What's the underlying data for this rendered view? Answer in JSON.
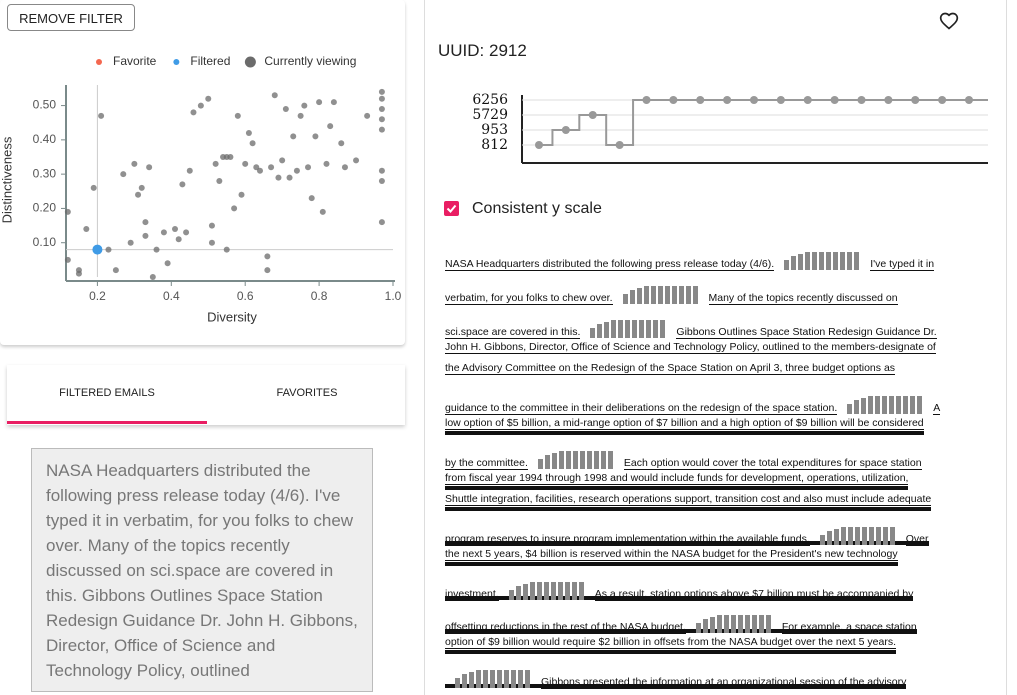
{
  "button": "REMOVE FILTER",
  "chart_data": {
    "type": "scatter",
    "xlabel": "Diversity",
    "ylabel": "Distinctiveness",
    "xlim": [
      0.115,
      1.0
    ],
    "ylim": [
      0,
      0.56
    ],
    "xticks": [
      0.2,
      0.4,
      0.6,
      0.8,
      {
        "value": 1,
        "label": "1.0"
      }
    ],
    "yticks": [
      {
        "value": 0.1,
        "label": "0.10"
      },
      {
        "value": 0.2,
        "label": "0.20"
      },
      {
        "value": 0.3,
        "label": "0.30"
      },
      {
        "value": 0.4,
        "label": "0.40"
      },
      {
        "value": 0.5,
        "label": "0.50"
      }
    ],
    "series": [
      {
        "name": "Favorite",
        "color": "#f4674f",
        "x": [],
        "values": []
      },
      {
        "name": "Filtered",
        "color": "#3f9be6",
        "x": [
          0.2
        ],
        "values": [
          0.08
        ]
      },
      {
        "name": "Currently viewing",
        "color": "#6b6b6b",
        "x": [
          0.12,
          0.12,
          0.15,
          0.15,
          0.17,
          0.19,
          0.21,
          0.23,
          0.25,
          0.27,
          0.29,
          0.3,
          0.31,
          0.32,
          0.33,
          0.33,
          0.34,
          0.35,
          0.36,
          0.38,
          0.39,
          0.41,
          0.42,
          0.43,
          0.44,
          0.45,
          0.46,
          0.48,
          0.5,
          0.51,
          0.51,
          0.52,
          0.53,
          0.54,
          0.55,
          0.55,
          0.56,
          0.57,
          0.58,
          0.59,
          0.6,
          0.61,
          0.62,
          0.63,
          0.64,
          0.66,
          0.66,
          0.67,
          0.68,
          0.69,
          0.7,
          0.71,
          0.72,
          0.73,
          0.74,
          0.75,
          0.76,
          0.77,
          0.78,
          0.79,
          0.8,
          0.81,
          0.82,
          0.83,
          0.84,
          0.86,
          0.87,
          0.9,
          0.93,
          0.97,
          0.97,
          0.97,
          0.97,
          0.97,
          0.97,
          0.97,
          0.97
        ],
        "values": [
          0.19,
          0.05,
          0.02,
          0.01,
          0.14,
          0.26,
          0.47,
          0.08,
          0.02,
          0.3,
          0.1,
          0.33,
          0.24,
          0.26,
          0.16,
          0.12,
          0.32,
          0.0,
          0.08,
          0.13,
          0.04,
          0.14,
          0.11,
          0.27,
          0.13,
          0.31,
          0.48,
          0.5,
          0.52,
          0.1,
          0.15,
          0.33,
          0.28,
          0.35,
          0.35,
          0.08,
          0.35,
          0.2,
          0.47,
          0.24,
          0.33,
          0.42,
          0.39,
          0.32,
          0.31,
          0.06,
          0.02,
          0.32,
          0.53,
          0.29,
          0.34,
          0.49,
          0.29,
          0.41,
          0.31,
          0.47,
          0.5,
          0.32,
          0.23,
          0.41,
          0.51,
          0.19,
          0.33,
          0.44,
          0.51,
          0.39,
          0.32,
          0.34,
          0.47,
          0.54,
          0.52,
          0.49,
          0.46,
          0.43,
          0.31,
          0.28,
          0.16
        ]
      }
    ]
  },
  "tabs": [
    "FILTERED EMAILS",
    "FAVORITES"
  ],
  "email": "NASA Headquarters distributed the following press release today (4/6). I've typed it in verbatim, for you folks to chew over. Many of the topics recently discussed on sci.space are covered in this. Gibbons Outlines Space Station Redesign Guidance Dr. John H. Gibbons, Director, Office of Science and Technology Policy, outlined",
  "uuid": "UUID: 2912",
  "step_chart": {
    "type": "step",
    "yticks": [
      812,
      953,
      5729,
      6256
    ],
    "values": [
      812,
      953,
      5729,
      812,
      6256,
      6256,
      6256,
      6256,
      6256,
      6256,
      6256,
      6256,
      6256,
      6256,
      6256,
      6256,
      6256
    ],
    "color": "#999999"
  },
  "checkbox": "Consistent y scale",
  "document": [
    {
      "left": "NASA Headquarters distributed the following press release today (4/6).",
      "right": "I've typed it in"
    },
    {
      "left": "verbatim, for you folks to chew over.",
      "right": "Many of the topics recently discussed on"
    },
    {
      "left": "sci.space are covered in this.",
      "right": "Gibbons Outlines Space Station Redesign Guidance Dr."
    },
    {
      "left": "John H. Gibbons, Director, Office of Science and Technology Policy, outlined to the members-designate of"
    },
    {
      "left": "the Advisory Committee on the Redesign of the Space Station on April 3, three budget options as"
    },
    {
      "left": "guidance to the committee in their deliberations on the redesign of the space station.",
      "right": "A"
    },
    {
      "left": "low option of $5 billion, a mid-range option of $7 billion and a high option of $9 billion will be considered"
    },
    {
      "left": "by the committee.",
      "right": "Each option would cover the total expenditures for space station"
    },
    {
      "left": "from fiscal year 1994 through 1998 and would include funds for development, operations, utilization,"
    },
    {
      "left": "Shuttle integration, facilities, research operations support, transition cost and also must include adequate"
    },
    {
      "left": "program reserves to insure program implementation within the available funds.",
      "right": "Over"
    },
    {
      "left": "the next 5 years, $4 billion is reserved within the NASA budget for the President's new technology"
    },
    {
      "left": "investment.",
      "right": "As a result, station options above $7 billion must be accompanied by"
    },
    {
      "left": "offsetting reductions in the rest of the NASA budget.",
      "right": "For example, a space station"
    },
    {
      "left": "option of $9 billion would require $2 billion in offsets from the NASA budget over the next 5 years."
    },
    {
      "right": "Gibbons presented the information at an organizational session of the advisory"
    }
  ]
}
